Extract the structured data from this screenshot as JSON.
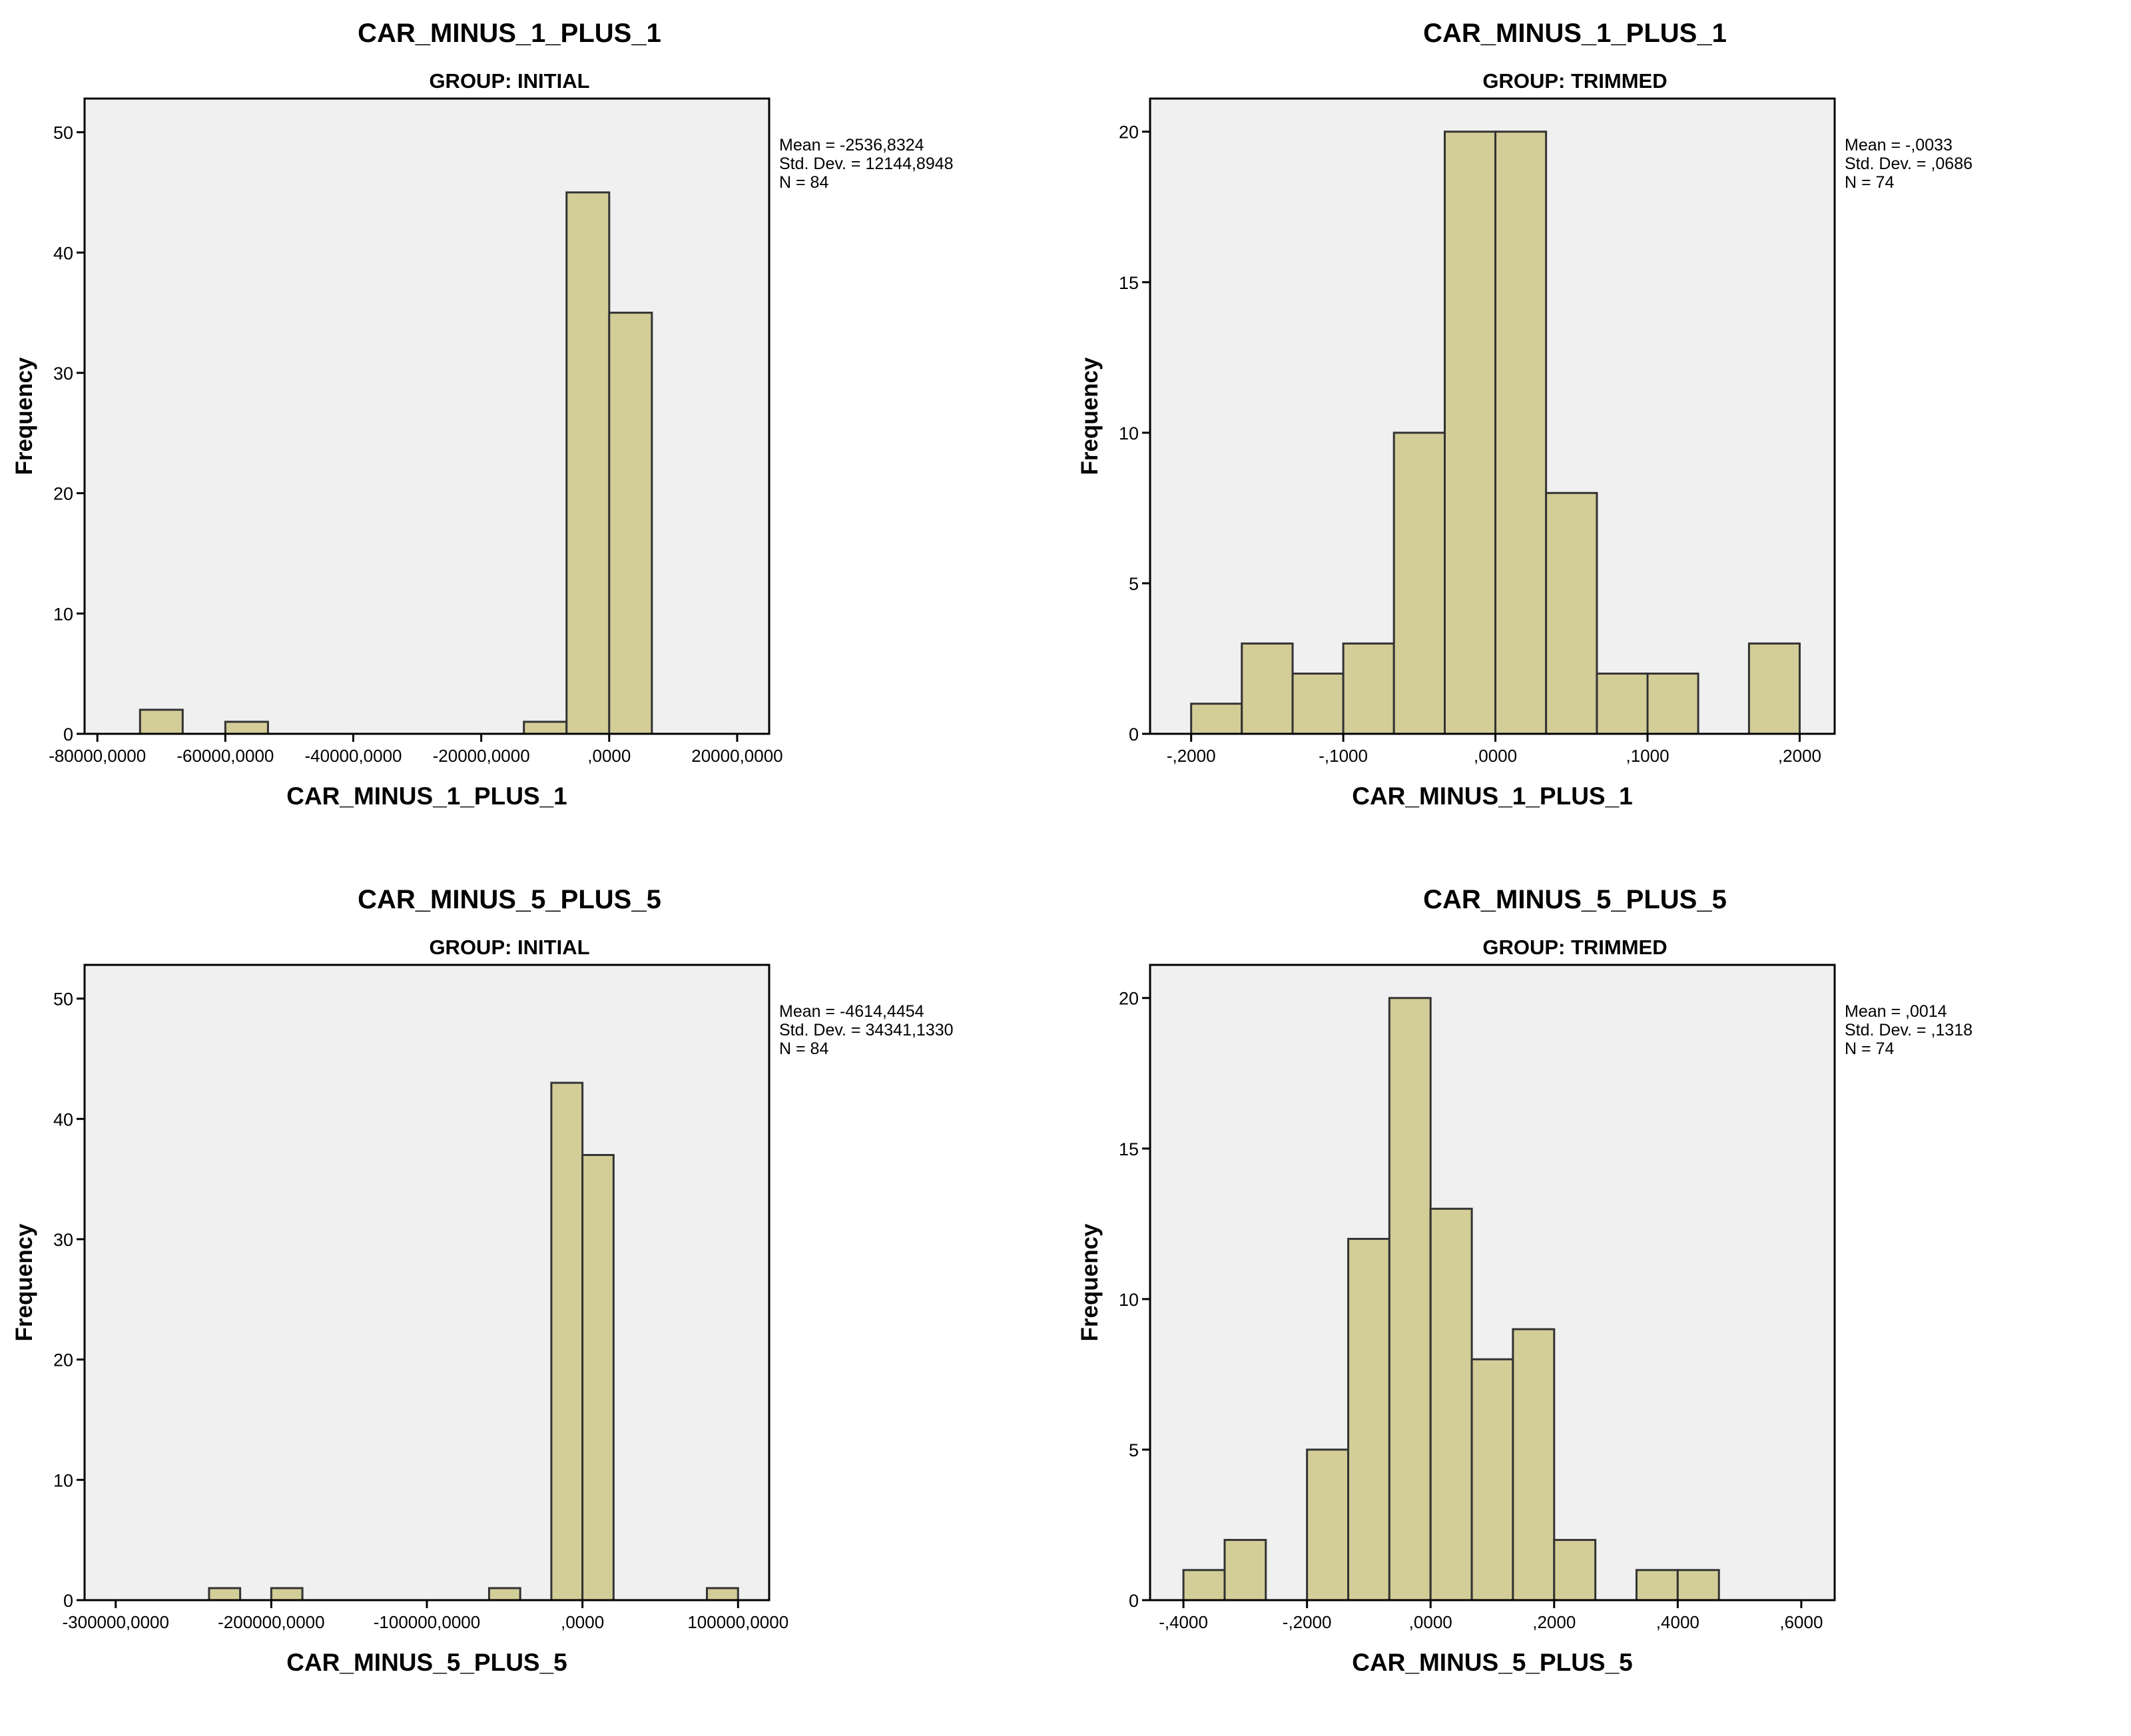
{
  "colors": {
    "bar_fill": "#d3cd98",
    "bar_stroke": "#333333",
    "plot_bg": "#f0f0f0",
    "axis": "#000000",
    "text": "#000000"
  },
  "chart_data": [
    {
      "type": "bar",
      "title": "CAR_MINUS_1_PLUS_1",
      "subtitle": "GROUP: INITIAL",
      "xlabel": "CAR_MINUS_1_PLUS_1",
      "ylabel": "Frequency",
      "xlim": [
        -82000,
        25000
      ],
      "ylim": [
        0,
        52.8
      ],
      "xticks": [
        -80000,
        -60000,
        -40000,
        -20000,
        0,
        20000
      ],
      "xtick_labels": [
        "-80000,0000",
        "-60000,0000",
        "-40000,0000",
        "-20000,0000",
        ",0000",
        "20000,0000"
      ],
      "yticks": [
        0,
        10,
        20,
        30,
        40,
        50
      ],
      "ytick_labels": [
        "0",
        "10",
        "20",
        "30",
        "40",
        "50"
      ],
      "bins": [
        {
          "x0": -73333,
          "x1": -66667,
          "value": 2
        },
        {
          "x0": -60000,
          "x1": -53333,
          "value": 1
        },
        {
          "x0": -13333,
          "x1": -6667,
          "value": 1
        },
        {
          "x0": -6667,
          "x1": 0,
          "value": 45
        },
        {
          "x0": 0,
          "x1": 6667,
          "value": 35
        }
      ],
      "stats": [
        "Mean = -2536,8324",
        "Std. Dev. = 12144,8948",
        "N = 84"
      ]
    },
    {
      "type": "bar",
      "title": "CAR_MINUS_1_PLUS_1",
      "subtitle": "GROUP: TRIMMED",
      "xlabel": "CAR_MINUS_1_PLUS_1",
      "ylabel": "Frequency",
      "xlim": [
        -0.227,
        0.223
      ],
      "ylim": [
        0,
        21.1
      ],
      "xticks": [
        -0.2,
        -0.1,
        0,
        0.1,
        0.2
      ],
      "xtick_labels": [
        "-,2000",
        "-,1000",
        ",0000",
        ",1000",
        ",2000"
      ],
      "yticks": [
        0,
        5,
        10,
        15,
        20
      ],
      "ytick_labels": [
        "0",
        "5",
        "10",
        "15",
        "20"
      ],
      "bins": [
        {
          "x0": -0.2,
          "x1": -0.1667,
          "value": 1
        },
        {
          "x0": -0.1667,
          "x1": -0.1333,
          "value": 3
        },
        {
          "x0": -0.1333,
          "x1": -0.1,
          "value": 2
        },
        {
          "x0": -0.1,
          "x1": -0.0667,
          "value": 3
        },
        {
          "x0": -0.0667,
          "x1": -0.0333,
          "value": 10
        },
        {
          "x0": -0.0333,
          "x1": 0,
          "value": 20
        },
        {
          "x0": 0,
          "x1": 0.0333,
          "value": 20
        },
        {
          "x0": 0.0333,
          "x1": 0.0667,
          "value": 8
        },
        {
          "x0": 0.0667,
          "x1": 0.1,
          "value": 2
        },
        {
          "x0": 0.1,
          "x1": 0.1333,
          "value": 2
        },
        {
          "x0": 0.1667,
          "x1": 0.2,
          "value": 3
        }
      ],
      "stats": [
        "Mean = -,0033",
        "Std. Dev. = ,0686",
        "N = 74"
      ]
    },
    {
      "type": "bar",
      "title": "CAR_MINUS_5_PLUS_5",
      "subtitle": "GROUP: INITIAL",
      "xlabel": "CAR_MINUS_5_PLUS_5",
      "ylabel": "Frequency",
      "xlim": [
        -320000,
        120000
      ],
      "ylim": [
        0,
        52.8
      ],
      "xticks": [
        -300000,
        -200000,
        -100000,
        0,
        100000
      ],
      "xtick_labels": [
        "-300000,0000",
        "-200000,0000",
        "-100000,0000",
        ",0000",
        "100000,0000"
      ],
      "yticks": [
        0,
        10,
        20,
        30,
        40,
        50
      ],
      "ytick_labels": [
        "0",
        "10",
        "20",
        "30",
        "40",
        "50"
      ],
      "bins": [
        {
          "x0": -240000,
          "x1": -220000,
          "value": 1
        },
        {
          "x0": -200000,
          "x1": -180000,
          "value": 1
        },
        {
          "x0": -60000,
          "x1": -40000,
          "value": 1
        },
        {
          "x0": -20000,
          "x1": 0,
          "value": 43
        },
        {
          "x0": 0,
          "x1": 20000,
          "value": 37
        },
        {
          "x0": 80000,
          "x1": 100000,
          "value": 1
        }
      ],
      "stats": [
        "Mean = -4614,4454",
        "Std. Dev. = 34341,1330",
        "N = 84"
      ]
    },
    {
      "type": "bar",
      "title": "CAR_MINUS_5_PLUS_5",
      "subtitle": "GROUP: TRIMMED",
      "xlabel": "CAR_MINUS_5_PLUS_5",
      "ylabel": "Frequency",
      "xlim": [
        -0.454,
        0.654
      ],
      "ylim": [
        0,
        21.1
      ],
      "xticks": [
        -0.4,
        -0.2,
        0,
        0.2,
        0.4,
        0.6
      ],
      "xtick_labels": [
        "-,4000",
        "-,2000",
        ",0000",
        ",2000",
        ",4000",
        ",6000"
      ],
      "yticks": [
        0,
        5,
        10,
        15,
        20
      ],
      "ytick_labels": [
        "0",
        "5",
        "10",
        "15",
        "20"
      ],
      "bins": [
        {
          "x0": -0.4,
          "x1": -0.3333,
          "value": 1
        },
        {
          "x0": -0.3333,
          "x1": -0.2667,
          "value": 2
        },
        {
          "x0": -0.2,
          "x1": -0.1333,
          "value": 5
        },
        {
          "x0": -0.1333,
          "x1": -0.0667,
          "value": 12
        },
        {
          "x0": -0.0667,
          "x1": 0,
          "value": 20
        },
        {
          "x0": 0,
          "x1": 0.0667,
          "value": 13
        },
        {
          "x0": 0.0667,
          "x1": 0.1333,
          "value": 8
        },
        {
          "x0": 0.1333,
          "x1": 0.2,
          "value": 9
        },
        {
          "x0": 0.2,
          "x1": 0.2667,
          "value": 2
        },
        {
          "x0": 0.3333,
          "x1": 0.4,
          "value": 1
        },
        {
          "x0": 0.4,
          "x1": 0.4667,
          "value": 1
        }
      ],
      "stats": [
        "Mean = ,0014",
        "Std. Dev. = ,1318",
        "N = 74"
      ]
    }
  ]
}
